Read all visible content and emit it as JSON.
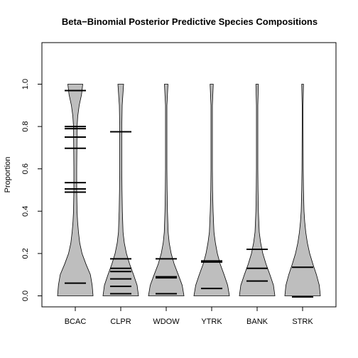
{
  "chart_data": {
    "type": "violin",
    "title": "Beta−Binomial Posterior Predictive Species Compositions",
    "xlabel": "",
    "ylabel": "Proportion",
    "ylim": [
      -0.05,
      1.06
    ],
    "yticks": [
      "0.0",
      "0.2",
      "0.4",
      "0.6",
      "0.8",
      "1.0"
    ],
    "yticks_values": [
      0.0,
      0.2,
      0.4,
      0.6,
      0.8,
      1.0
    ],
    "categories": [
      "BCAC",
      "CLPR",
      "WDOW",
      "YTRK",
      "BANK",
      "STRK"
    ],
    "fill_color": "#bebebe",
    "series": [
      {
        "category": "BCAC",
        "density": [
          [
            0.0,
            1.0
          ],
          [
            0.05,
            0.95
          ],
          [
            0.1,
            0.85
          ],
          [
            0.15,
            0.6
          ],
          [
            0.2,
            0.38
          ],
          [
            0.25,
            0.25
          ],
          [
            0.3,
            0.18
          ],
          [
            0.35,
            0.13
          ],
          [
            0.4,
            0.1
          ],
          [
            0.5,
            0.08
          ],
          [
            0.6,
            0.08
          ],
          [
            0.7,
            0.09
          ],
          [
            0.8,
            0.1
          ],
          [
            0.85,
            0.14
          ],
          [
            0.9,
            0.22
          ],
          [
            0.95,
            0.35
          ],
          [
            1.0,
            0.42
          ]
        ],
        "observed": [
          0.06,
          0.49,
          0.505,
          0.535,
          0.697,
          0.75,
          0.79,
          0.8,
          0.97
        ]
      },
      {
        "category": "CLPR",
        "density": [
          [
            0.0,
            1.0
          ],
          [
            0.05,
            0.92
          ],
          [
            0.1,
            0.72
          ],
          [
            0.15,
            0.5
          ],
          [
            0.2,
            0.32
          ],
          [
            0.25,
            0.2
          ],
          [
            0.3,
            0.13
          ],
          [
            0.4,
            0.09
          ],
          [
            0.5,
            0.07
          ],
          [
            0.6,
            0.06
          ],
          [
            0.7,
            0.06
          ],
          [
            0.8,
            0.06
          ],
          [
            0.9,
            0.08
          ],
          [
            1.0,
            0.16
          ]
        ],
        "observed": [
          0.01,
          0.045,
          0.08,
          0.115,
          0.13,
          0.175,
          0.775
        ]
      },
      {
        "category": "WDOW",
        "density": [
          [
            0.0,
            1.0
          ],
          [
            0.05,
            0.9
          ],
          [
            0.1,
            0.68
          ],
          [
            0.15,
            0.45
          ],
          [
            0.2,
            0.28
          ],
          [
            0.25,
            0.17
          ],
          [
            0.3,
            0.11
          ],
          [
            0.4,
            0.07
          ],
          [
            0.5,
            0.05
          ],
          [
            0.6,
            0.04
          ],
          [
            0.7,
            0.04
          ],
          [
            0.8,
            0.04
          ],
          [
            0.9,
            0.04
          ],
          [
            1.0,
            0.1
          ]
        ],
        "observed": [
          0.01,
          0.085,
          0.09,
          0.175
        ]
      },
      {
        "category": "YTRK",
        "density": [
          [
            0.0,
            1.0
          ],
          [
            0.05,
            0.9
          ],
          [
            0.1,
            0.7
          ],
          [
            0.15,
            0.48
          ],
          [
            0.2,
            0.32
          ],
          [
            0.25,
            0.21
          ],
          [
            0.3,
            0.13
          ],
          [
            0.4,
            0.08
          ],
          [
            0.5,
            0.05
          ],
          [
            0.6,
            0.04
          ],
          [
            0.7,
            0.04
          ],
          [
            0.8,
            0.04
          ],
          [
            0.9,
            0.04
          ],
          [
            1.0,
            0.09
          ]
        ],
        "observed": [
          0.035,
          0.16,
          0.165
        ]
      },
      {
        "category": "BANK",
        "density": [
          [
            0.0,
            1.0
          ],
          [
            0.05,
            0.92
          ],
          [
            0.1,
            0.72
          ],
          [
            0.15,
            0.5
          ],
          [
            0.2,
            0.32
          ],
          [
            0.25,
            0.2
          ],
          [
            0.3,
            0.12
          ],
          [
            0.4,
            0.07
          ],
          [
            0.5,
            0.05
          ],
          [
            0.6,
            0.04
          ],
          [
            0.7,
            0.04
          ],
          [
            0.8,
            0.04
          ],
          [
            0.9,
            0.04
          ],
          [
            1.0,
            0.07
          ]
        ],
        "observed": [
          0.07,
          0.13,
          0.22
        ]
      },
      {
        "category": "STRK",
        "density": [
          [
            0.0,
            1.0
          ],
          [
            0.05,
            0.94
          ],
          [
            0.1,
            0.78
          ],
          [
            0.15,
            0.58
          ],
          [
            0.2,
            0.4
          ],
          [
            0.25,
            0.27
          ],
          [
            0.3,
            0.18
          ],
          [
            0.35,
            0.12
          ],
          [
            0.4,
            0.08
          ],
          [
            0.5,
            0.05
          ],
          [
            0.6,
            0.035
          ],
          [
            0.7,
            0.03
          ],
          [
            0.8,
            0.025
          ],
          [
            0.9,
            0.025
          ],
          [
            1.0,
            0.05
          ]
        ],
        "observed": [
          -0.005,
          0.135
        ]
      }
    ]
  }
}
